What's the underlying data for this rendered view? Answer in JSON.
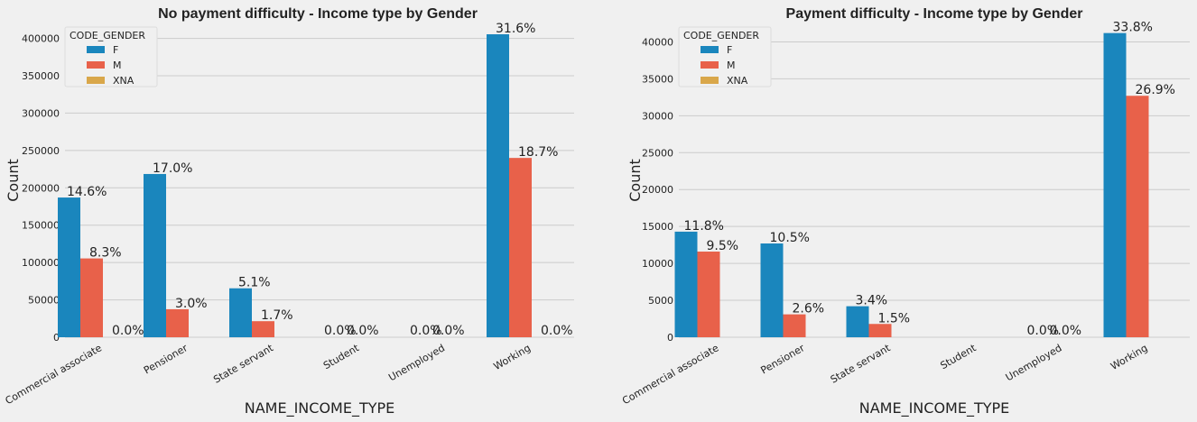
{
  "colors": {
    "F": "#1a86bd",
    "M": "#e8614a",
    "XNA": "#d9a74a",
    "grid": "#cbcbcb",
    "bg": "#f0f0f0"
  },
  "chart_data": [
    {
      "type": "bar",
      "title": "No payment difficulty - Income type by Gender",
      "xlabel": "NAME_INCOME_TYPE",
      "ylabel": "Count",
      "categories": [
        "Commercial associate",
        "Pensioner",
        "State servant",
        "Student",
        "Unemployed",
        "Working"
      ],
      "ylim": [
        0,
        420000
      ],
      "yticks": [
        0,
        50000,
        100000,
        150000,
        200000,
        250000,
        300000,
        350000,
        400000
      ],
      "grid": true,
      "legend": {
        "title": "CODE_GENDER",
        "placement": "top-left",
        "entries": [
          "F",
          "M",
          "XNA"
        ]
      },
      "series": [
        {
          "name": "F",
          "values": [
            187000,
            218500,
            65500,
            0,
            0,
            405500
          ],
          "labels": [
            "14.6%",
            "17.0%",
            "5.1%",
            "0.0%",
            "0.0%",
            "31.6%"
          ]
        },
        {
          "name": "M",
          "values": [
            105500,
            37500,
            21500,
            0,
            0,
            240000
          ],
          "labels": [
            "8.3%",
            "3.0%",
            "1.7%",
            "0.0%",
            "0.0%",
            "18.7%"
          ]
        },
        {
          "name": "XNA",
          "values": [
            0,
            0,
            0,
            0,
            0,
            0
          ],
          "labels": [
            "0.0%",
            "",
            "",
            "",
            "",
            "0.0%"
          ]
        }
      ]
    },
    {
      "type": "bar",
      "title": "Payment difficulty - Income type by Gender",
      "xlabel": "NAME_INCOME_TYPE",
      "ylabel": "Count",
      "categories": [
        "Commercial associate",
        "Pensioner",
        "State servant",
        "Student",
        "Unemployed",
        "Working"
      ],
      "ylim": [
        0,
        42500
      ],
      "yticks": [
        0,
        5000,
        10000,
        15000,
        20000,
        25000,
        30000,
        35000,
        40000
      ],
      "grid": true,
      "legend": {
        "title": "CODE_GENDER",
        "placement": "top-left",
        "entries": [
          "F",
          "M",
          "XNA"
        ]
      },
      "series": [
        {
          "name": "F",
          "values": [
            14300,
            12700,
            4200,
            0,
            0,
            41200
          ],
          "labels": [
            "11.8%",
            "10.5%",
            "3.4%",
            "",
            "0.0%",
            "33.8%"
          ]
        },
        {
          "name": "M",
          "values": [
            11600,
            3100,
            1800,
            0,
            0,
            32700
          ],
          "labels": [
            "9.5%",
            "2.6%",
            "1.5%",
            "",
            "0.0%",
            "26.9%"
          ]
        },
        {
          "name": "XNA",
          "values": [
            0,
            0,
            0,
            0,
            0,
            0
          ],
          "labels": [
            "",
            "",
            "",
            "",
            "",
            ""
          ]
        }
      ]
    }
  ]
}
